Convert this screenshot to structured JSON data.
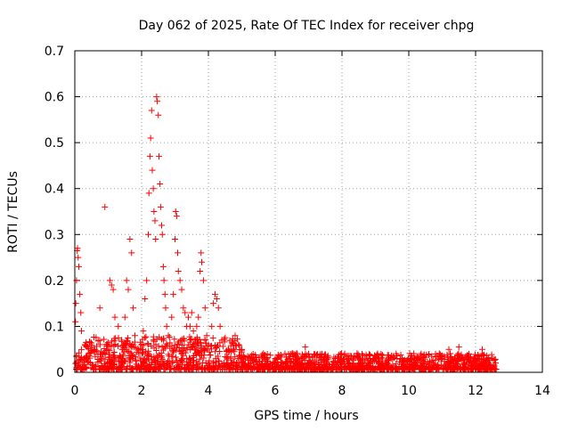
{
  "chart_data": {
    "type": "scatter",
    "title": "Day 062 of 2025, Rate Of TEC Index for receiver chpg",
    "xlabel": "GPS time / hours",
    "ylabel": "ROTI / TECUs",
    "xlim": [
      0,
      14
    ],
    "ylim": [
      0,
      0.7
    ],
    "x_ticks": [
      0,
      2,
      4,
      6,
      8,
      10,
      12,
      14
    ],
    "x_tick_labels": [
      "0",
      "2",
      "4",
      "6",
      "8",
      "10",
      "12",
      "14"
    ],
    "y_ticks": [
      0,
      0.1,
      0.2,
      0.3,
      0.4,
      0.5,
      0.6,
      0.7
    ],
    "y_tick_labels": [
      "0",
      "0.1",
      "0.2",
      "0.3",
      "0.4",
      "0.5",
      "0.6",
      "0.7"
    ],
    "grid": true,
    "marker": "plus",
    "color": "#ff0000",
    "series": [
      {
        "points": [
          [
            0.02,
            0.11
          ],
          [
            0.03,
            0.15
          ],
          [
            0.05,
            0.2
          ],
          [
            0.07,
            0.265
          ],
          [
            0.08,
            0.27
          ],
          [
            0.1,
            0.25
          ],
          [
            0.12,
            0.23
          ],
          [
            0.15,
            0.17
          ],
          [
            0.18,
            0.13
          ],
          [
            0.2,
            0.09
          ],
          [
            0.3,
            0.06
          ],
          [
            0.45,
            0.065
          ],
          [
            0.6,
            0.05
          ],
          [
            0.75,
            0.14
          ],
          [
            0.9,
            0.36
          ],
          [
            0.95,
            0.06
          ],
          [
            1.05,
            0.2
          ],
          [
            1.1,
            0.19
          ],
          [
            1.15,
            0.18
          ],
          [
            1.2,
            0.12
          ],
          [
            1.3,
            0.1
          ],
          [
            1.4,
            0.07
          ],
          [
            1.5,
            0.12
          ],
          [
            1.55,
            0.2
          ],
          [
            1.6,
            0.18
          ],
          [
            1.65,
            0.29
          ],
          [
            1.7,
            0.26
          ],
          [
            1.75,
            0.14
          ],
          [
            1.8,
            0.08
          ],
          [
            2.0,
            0.06
          ],
          [
            2.05,
            0.09
          ],
          [
            2.1,
            0.16
          ],
          [
            2.15,
            0.2
          ],
          [
            2.2,
            0.3
          ],
          [
            2.22,
            0.39
          ],
          [
            2.25,
            0.47
          ],
          [
            2.27,
            0.51
          ],
          [
            2.3,
            0.57
          ],
          [
            2.32,
            0.44
          ],
          [
            2.35,
            0.4
          ],
          [
            2.37,
            0.35
          ],
          [
            2.4,
            0.33
          ],
          [
            2.42,
            0.29
          ],
          [
            2.45,
            0.6
          ],
          [
            2.47,
            0.59
          ],
          [
            2.5,
            0.56
          ],
          [
            2.52,
            0.47
          ],
          [
            2.55,
            0.41
          ],
          [
            2.57,
            0.36
          ],
          [
            2.6,
            0.32
          ],
          [
            2.62,
            0.3
          ],
          [
            2.65,
            0.23
          ],
          [
            2.67,
            0.2
          ],
          [
            2.7,
            0.17
          ],
          [
            2.72,
            0.14
          ],
          [
            2.75,
            0.1
          ],
          [
            2.8,
            0.08
          ],
          [
            2.9,
            0.12
          ],
          [
            2.95,
            0.17
          ],
          [
            3.0,
            0.29
          ],
          [
            3.02,
            0.35
          ],
          [
            3.05,
            0.34
          ],
          [
            3.08,
            0.26
          ],
          [
            3.1,
            0.22
          ],
          [
            3.15,
            0.2
          ],
          [
            3.2,
            0.18
          ],
          [
            3.25,
            0.14
          ],
          [
            3.3,
            0.13
          ],
          [
            3.35,
            0.1
          ],
          [
            3.4,
            0.12
          ],
          [
            3.45,
            0.1
          ],
          [
            3.5,
            0.13
          ],
          [
            3.55,
            0.09
          ],
          [
            3.6,
            0.07
          ],
          [
            3.65,
            0.1
          ],
          [
            3.7,
            0.12
          ],
          [
            3.75,
            0.22
          ],
          [
            3.78,
            0.26
          ],
          [
            3.8,
            0.24
          ],
          [
            3.85,
            0.2
          ],
          [
            3.9,
            0.14
          ],
          [
            3.95,
            0.08
          ],
          [
            4.0,
            0.06
          ],
          [
            4.1,
            0.1
          ],
          [
            4.15,
            0.15
          ],
          [
            4.2,
            0.17
          ],
          [
            4.25,
            0.16
          ],
          [
            4.3,
            0.14
          ],
          [
            4.35,
            0.1
          ],
          [
            4.4,
            0.07
          ],
          [
            4.6,
            0.05
          ],
          [
            4.8,
            0.08
          ],
          [
            4.9,
            0.06
          ],
          [
            5.0,
            0.05
          ],
          [
            5.3,
            0.03
          ],
          [
            5.6,
            0.035
          ],
          [
            6.0,
            0.03
          ],
          [
            6.4,
            0.04
          ],
          [
            6.9,
            0.055
          ],
          [
            7.0,
            0.04
          ],
          [
            7.4,
            0.04
          ],
          [
            7.8,
            0.03
          ],
          [
            8.2,
            0.03
          ],
          [
            8.6,
            0.04
          ],
          [
            9.0,
            0.03
          ],
          [
            9.4,
            0.025
          ],
          [
            9.8,
            0.03
          ],
          [
            10.3,
            0.03
          ],
          [
            10.8,
            0.04
          ],
          [
            11.2,
            0.05
          ],
          [
            11.5,
            0.055
          ],
          [
            11.8,
            0.04
          ],
          [
            12.2,
            0.05
          ],
          [
            12.5,
            0.03
          ],
          [
            12.6,
            0.02
          ]
        ]
      }
    ]
  }
}
